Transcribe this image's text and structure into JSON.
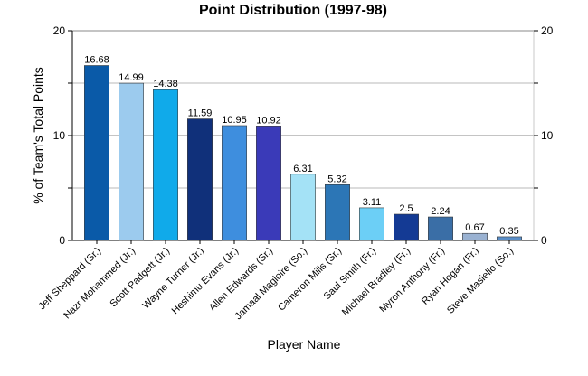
{
  "chart_data": {
    "type": "bar",
    "title": "Point Distribution (1997-98)",
    "xlabel": "Player Name",
    "ylabel": "% of Team's Total Points",
    "ylim": [
      0,
      20
    ],
    "yticks": [
      0,
      10,
      20
    ],
    "grid": true,
    "legend": "none",
    "categories": [
      "Jeff Sheppard (Sr.)",
      "Nazr Mohammed (Jr.)",
      "Scott Padgett (Jr.)",
      "Wayne Turner (Jr.)",
      "Heshimu Evans (Jr.)",
      "Allen Edwards (Sr.)",
      "Jamaal Magloire (So.)",
      "Cameron Mills (Sr.)",
      "Saul Smith (Fr.)",
      "Michael Bradley (Fr.)",
      "Myron Anthony (Fr.)",
      "Ryan Hogan (Fr.)",
      "Steve Masiello (So.)"
    ],
    "values": [
      16.68,
      14.99,
      14.38,
      11.59,
      10.95,
      10.92,
      6.31,
      5.32,
      3.11,
      2.5,
      2.24,
      0.67,
      0.35
    ],
    "value_labels": [
      "16.68",
      "14.99",
      "14.38",
      "11.59",
      "10.95",
      "10.92",
      "6.31",
      "5.32",
      "3.11",
      "2.5",
      "2.24",
      "0.67",
      "0.35"
    ],
    "colors": [
      "#0a5aa8",
      "#9ccbee",
      "#10aaea",
      "#10307a",
      "#3e8ede",
      "#3a3ab8",
      "#a4e2f6",
      "#2c76b6",
      "#6ccff6",
      "#143a94",
      "#3a6ea6",
      "#9ab2d2",
      "#5a8ec8"
    ]
  }
}
